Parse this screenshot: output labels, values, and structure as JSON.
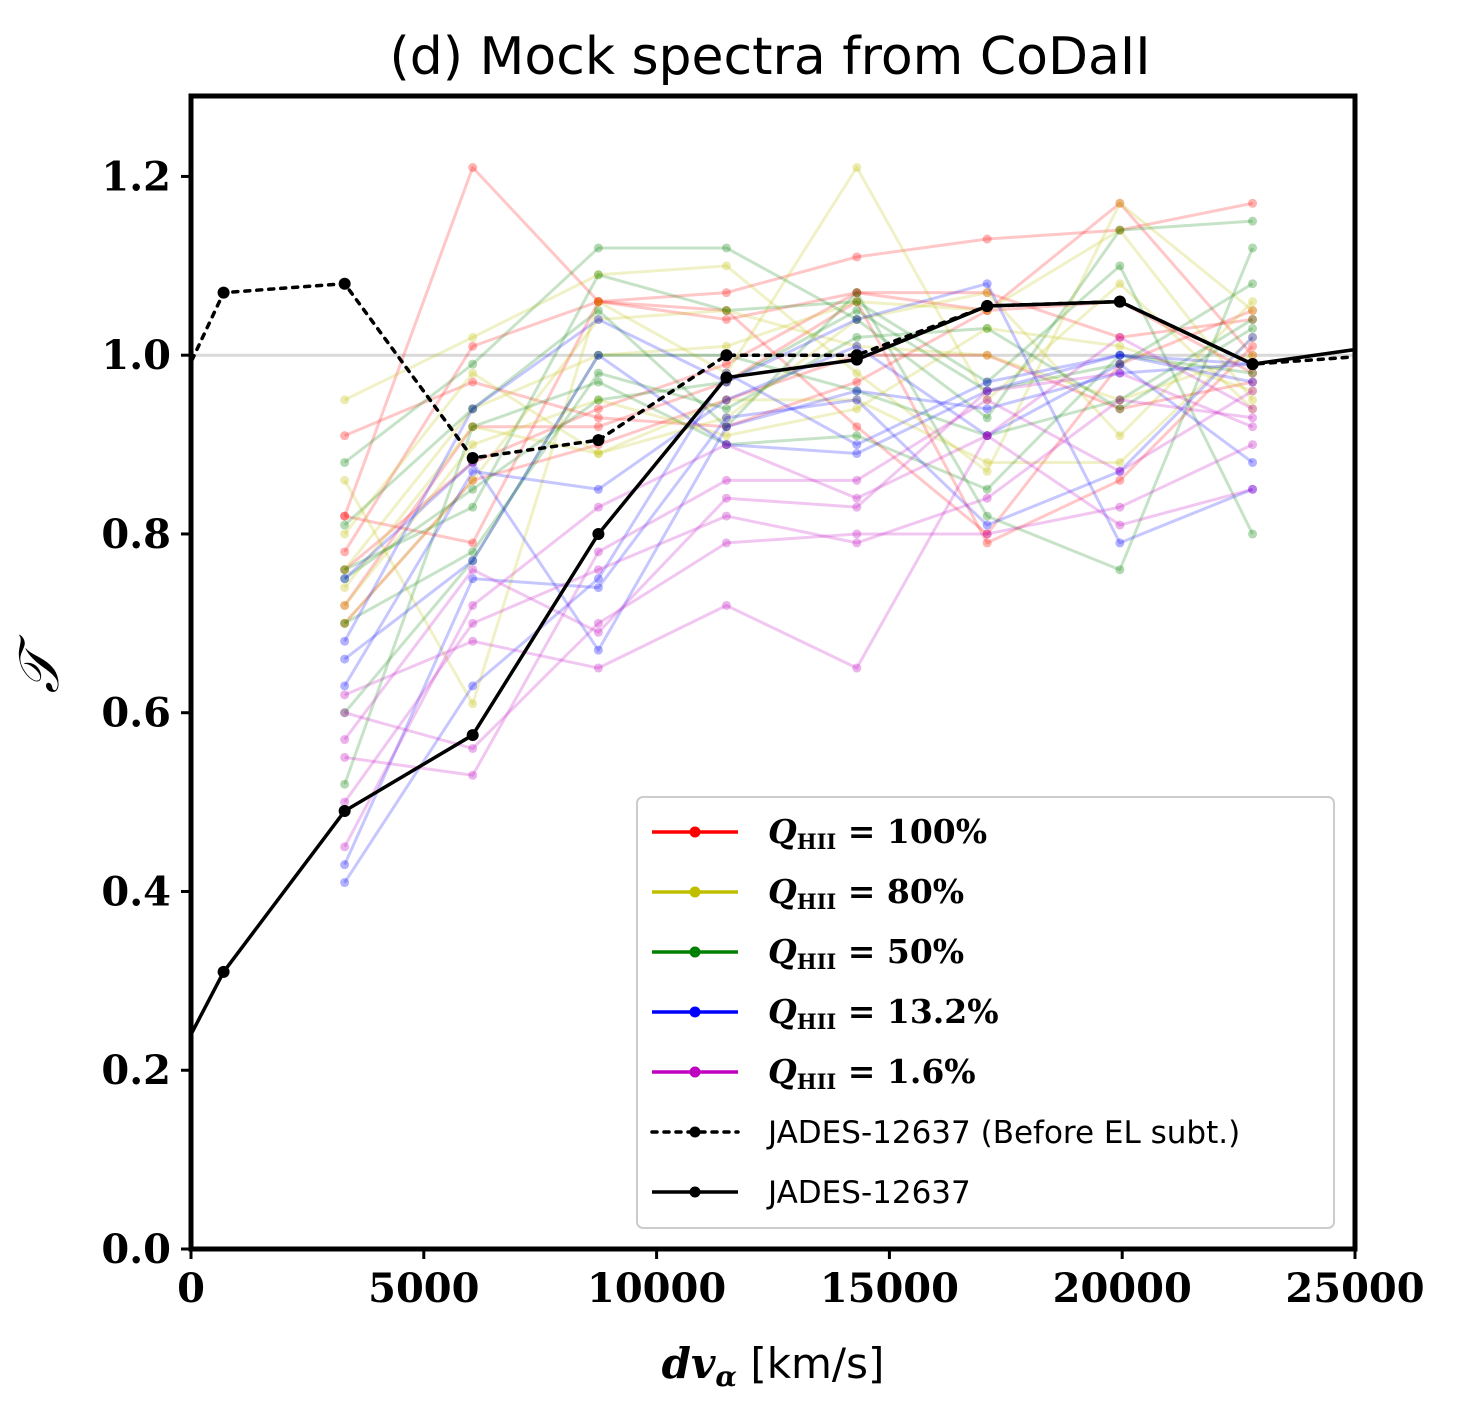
{
  "chart_data": {
    "type": "line",
    "title": "(d) Mock spectra from CoDaII",
    "xlabel_math": "dv",
    "xlabel_sub": "α",
    "xlabel_unit": "[km/s]",
    "ylabel": "𝒯",
    "xlim": [
      0,
      25000
    ],
    "ylim": [
      0,
      1.29
    ],
    "xticks": [
      0,
      5000,
      10000,
      15000,
      20000,
      25000
    ],
    "yticks": [
      0.0,
      0.2,
      0.4,
      0.6,
      0.8,
      1.0,
      1.2
    ],
    "xtick_labels": [
      "0",
      "5000",
      "10000",
      "15000",
      "20000",
      "25000"
    ],
    "ytick_labels": [
      "0.0",
      "0.2",
      "0.4",
      "0.6",
      "0.8",
      "1.0",
      "1.2"
    ],
    "reference_line": {
      "y": 1.0,
      "color": "#d9d9d9"
    },
    "legend": {
      "placement": "lower-right"
    },
    "mock_x": [
      3300,
      6050,
      8750,
      11500,
      14300,
      17100,
      19950,
      22800
    ],
    "mock_series": [
      {
        "name": "Q_HII = 100%",
        "legend_prefix": "Q",
        "legend_sub": "HII",
        "legend_suffix": " = 100%",
        "color": "#ff0000",
        "lines": [
          [
            0.82,
            1.21,
            1.06,
            1.07,
            1.11,
            1.13,
            1.14,
            1.17
          ],
          [
            0.78,
            1.01,
            1.06,
            1.04,
            1.07,
            1.07,
            1.02,
            1.04
          ],
          [
            0.91,
            0.97,
            0.93,
            0.92,
            0.97,
            1.05,
            1.06,
            0.98
          ],
          [
            0.72,
            0.92,
            0.92,
            0.97,
            1.06,
            0.79,
            0.86,
            1.01
          ],
          [
            0.76,
            0.88,
            0.94,
            0.99,
            1.07,
            1.05,
            1.17,
            1.0
          ],
          [
            0.82,
            0.79,
            1.06,
            1.05,
            0.92,
            0.8,
            0.99,
            1.05
          ],
          [
            0.7,
            0.86,
            0.9,
            0.95,
            1.0,
            1.0,
            0.94,
            0.97
          ]
        ]
      },
      {
        "name": "Q_HII = 80%",
        "legend_prefix": "Q",
        "legend_sub": "HII",
        "legend_suffix": " = 80%",
        "color": "#bfbf00",
        "lines": [
          [
            0.95,
            1.02,
            1.09,
            1.1,
            0.98,
            0.87,
            1.17,
            1.05
          ],
          [
            0.86,
            0.61,
            1.06,
            0.98,
            1.21,
            0.95,
            1.08,
            0.94
          ],
          [
            0.8,
            0.98,
            0.89,
            0.93,
            1.04,
            1.07,
            0.91,
            1.06
          ],
          [
            0.76,
            0.94,
            1.0,
            1.01,
            1.06,
            1.05,
            1.14,
            0.95
          ],
          [
            0.74,
            0.92,
            0.89,
            0.95,
            0.95,
            0.88,
            0.88,
            1.02
          ],
          [
            0.7,
            0.86,
            1.04,
            1.05,
            1.01,
            1.0,
            0.95,
            1.0
          ],
          [
            0.72,
            0.9,
            0.95,
            0.91,
            0.94,
            1.03,
            1.01,
            0.96
          ]
        ]
      },
      {
        "name": "Q_HII = 50%",
        "legend_prefix": "Q",
        "legend_sub": "HII",
        "legend_suffix": " = 50%",
        "color": "#008000",
        "lines": [
          [
            0.88,
            0.99,
            1.12,
            1.12,
            1.04,
            0.93,
            1.14,
            1.15
          ],
          [
            0.81,
            0.94,
            1.05,
            0.92,
            1.07,
            0.82,
            0.76,
            1.12
          ],
          [
            0.76,
            0.83,
            1.09,
            1.05,
            1.06,
            0.97,
            1.1,
            0.8
          ],
          [
            0.7,
            0.78,
            0.98,
            0.94,
            1.02,
            1.03,
            0.94,
            1.03
          ],
          [
            0.75,
            0.85,
            0.95,
            0.97,
            1.05,
            0.96,
            0.99,
            1.08
          ],
          [
            0.52,
            0.92,
            0.97,
            0.9,
            0.91,
            0.85,
            1.0,
            0.98
          ],
          [
            0.6,
            0.77,
            1.0,
            1.0,
            0.96,
            0.91,
            0.95,
            1.04
          ]
        ]
      },
      {
        "name": "Q_HII = 13.2%",
        "legend_prefix": "Q",
        "legend_sub": "HII",
        "legend_suffix": " = 13.2%",
        "color": "#0000ff",
        "lines": [
          [
            0.68,
            0.94,
            1.04,
            0.97,
            1.04,
            1.08,
            0.79,
            0.85
          ],
          [
            0.63,
            0.87,
            0.85,
            0.95,
            1.01,
            0.91,
            0.99,
            0.88
          ],
          [
            0.41,
            0.63,
            0.75,
            0.98,
            0.9,
            0.97,
            1.0,
            0.99
          ],
          [
            0.75,
            0.88,
            0.67,
            0.92,
            0.96,
            0.94,
            0.98,
            0.99
          ],
          [
            0.43,
            0.75,
            0.74,
            0.93,
            0.95,
            0.81,
            0.87,
            1.02
          ],
          [
            0.66,
            0.77,
            1.0,
            0.9,
            0.89,
            0.96,
            1.0,
            0.97
          ]
        ]
      },
      {
        "name": "Q_HII = 1.6%",
        "legend_prefix": "Q",
        "legend_sub": "HII",
        "legend_suffix": " = 1.6%",
        "color": "#bf00bf",
        "lines": [
          [
            0.62,
            0.68,
            0.65,
            0.72,
            0.65,
            0.91,
            0.81,
            0.85
          ],
          [
            0.6,
            0.56,
            0.7,
            0.79,
            0.8,
            0.8,
            0.83,
            0.9
          ],
          [
            0.55,
            0.53,
            0.78,
            0.86,
            0.86,
            0.95,
            0.87,
            0.96
          ],
          [
            0.5,
            0.7,
            0.76,
            0.82,
            0.79,
            0.84,
            0.95,
            0.93
          ],
          [
            0.45,
            0.72,
            0.83,
            0.9,
            0.84,
            0.91,
            1.02,
            0.94
          ],
          [
            0.57,
            0.76,
            0.69,
            0.84,
            0.83,
            0.96,
            0.98,
            0.92
          ]
        ]
      }
    ],
    "observed": [
      {
        "name": "JADES-12637 (Before EL subt.)",
        "color": "#000000",
        "style": "dotted",
        "x": [
          -200,
          700,
          3300,
          6050,
          8750,
          11500,
          14300,
          17100,
          19950,
          22800,
          25500
        ],
        "y": [
          0.97,
          1.07,
          1.08,
          0.885,
          0.905,
          1.0,
          1.0,
          1.055,
          1.06,
          0.99,
          1.0
        ]
      },
      {
        "name": "JADES-12637",
        "color": "#000000",
        "style": "solid",
        "x": [
          -200,
          700,
          3300,
          6050,
          8750,
          11500,
          14300,
          17100,
          19950,
          22800,
          25500
        ],
        "y": [
          0.22,
          0.31,
          0.49,
          0.575,
          0.8,
          0.975,
          0.995,
          1.055,
          1.06,
          0.99,
          1.01
        ]
      }
    ]
  }
}
